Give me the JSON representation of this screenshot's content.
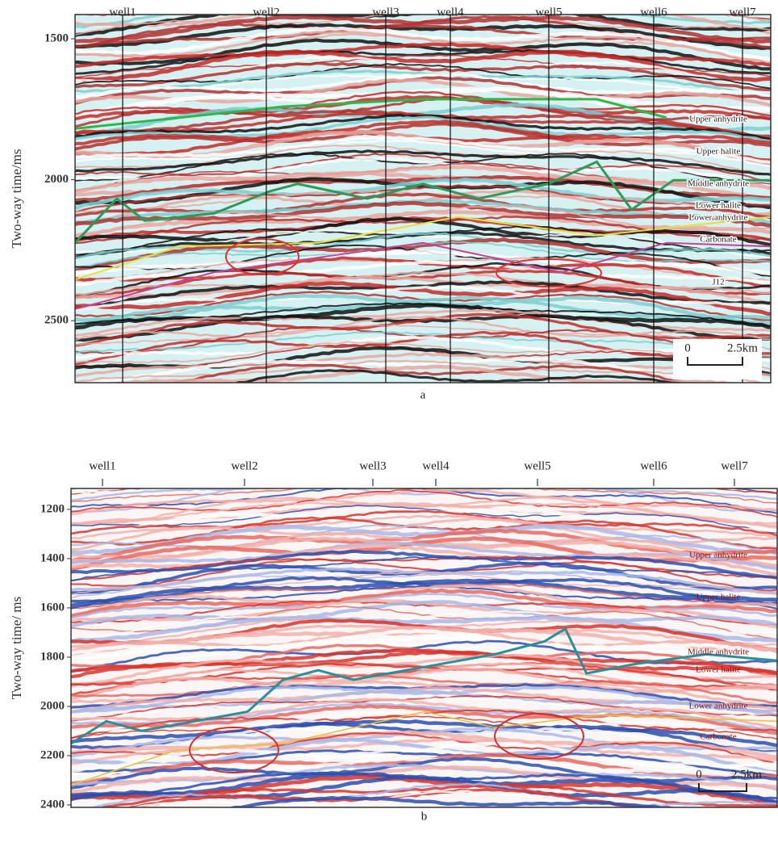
{
  "chart_data": [
    {
      "type": "seismic",
      "caption": "a",
      "y_label": "Two-way time/ms",
      "ylim": [
        1414,
        2720
      ],
      "y_inverted": true,
      "yticks": [
        1500,
        2000,
        2500
      ],
      "wells": [
        "well1",
        "well2",
        "well3",
        "well4",
        "well5",
        "well6",
        "well7"
      ],
      "horizons": [
        "Upper anhydrite",
        "Upper halite",
        "Middle anhydrite",
        "Lower halite",
        "Lower anhydrite",
        "Carbonate",
        "J12"
      ],
      "scale_bar": [
        "0",
        "2.5km"
      ]
    },
    {
      "type": "seismic",
      "caption": "b",
      "y_label": "Two-way  time/ ms",
      "ylim": [
        1115,
        2410
      ],
      "y_inverted": true,
      "yticks": [
        1200,
        1400,
        1600,
        1800,
        2000,
        2200,
        2400
      ],
      "wells": [
        "well1",
        "well2",
        "well3",
        "well4",
        "well5",
        "well6",
        "well7"
      ],
      "horizons": [
        "Upper anhydrite",
        "Upper halite",
        "Middle anhydrite",
        "Lower halite",
        "Lower anhydrite",
        "Carbonate"
      ],
      "scale_bar": [
        "0",
        "2.5km"
      ]
    }
  ]
}
